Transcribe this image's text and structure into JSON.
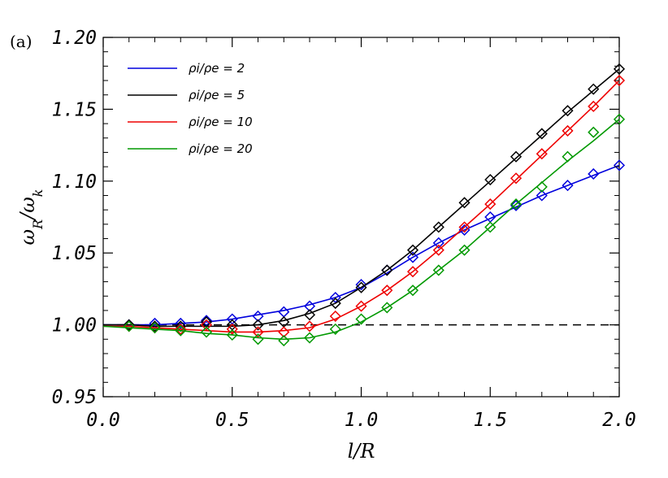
{
  "panel_label": "(a)",
  "chart_data": {
    "type": "line",
    "xlabel": "l/R",
    "ylabel": "ω_R/ω_k",
    "xlim": [
      0.0,
      2.0
    ],
    "ylim": [
      0.95,
      1.2
    ],
    "xticks": [
      "0.0",
      "0.5",
      "1.0",
      "1.5",
      "2.0"
    ],
    "yticks": [
      "0.95",
      "1.00",
      "1.05",
      "1.10",
      "1.15",
      "1.20"
    ],
    "legend_position": "top-left",
    "reference_line": {
      "y": 1.0,
      "x_from": 0.0,
      "x_to": 2.0,
      "style": "dashed",
      "color": "#000000"
    },
    "series": [
      {
        "name": "ρi/ρe = 2",
        "color": "#0000dd",
        "x": [
          0.0,
          0.1,
          0.2,
          0.3,
          0.4,
          0.5,
          0.6,
          0.7,
          0.8,
          0.9,
          1.0,
          1.1,
          1.2,
          1.3,
          1.4,
          1.5,
          1.6,
          1.7,
          1.8,
          1.9,
          2.0
        ],
        "line": [
          1.0,
          1.0,
          1.0,
          1.001,
          1.002,
          1.004,
          1.007,
          1.01,
          1.014,
          1.019,
          1.026,
          1.036,
          1.047,
          1.057,
          1.066,
          1.074,
          1.082,
          1.09,
          1.097,
          1.104,
          1.111
        ],
        "markers_x": [
          0.1,
          0.2,
          0.3,
          0.4,
          0.5,
          0.6,
          0.7,
          0.8,
          0.9,
          1.0,
          1.1,
          1.2,
          1.3,
          1.4,
          1.5,
          1.6,
          1.7,
          1.8,
          1.9,
          2.0
        ],
        "markers": [
          1.0,
          1.001,
          1.001,
          1.003,
          1.004,
          1.006,
          1.009,
          1.013,
          1.019,
          1.028,
          1.038,
          1.047,
          1.057,
          1.066,
          1.075,
          1.083,
          1.09,
          1.097,
          1.105,
          1.111
        ]
      },
      {
        "name": "ρi/ρe = 5",
        "color": "#000000",
        "x": [
          0.0,
          0.1,
          0.2,
          0.3,
          0.4,
          0.5,
          0.6,
          0.7,
          0.8,
          0.9,
          1.0,
          1.1,
          1.2,
          1.3,
          1.4,
          1.5,
          1.6,
          1.7,
          1.8,
          1.9,
          2.0
        ],
        "line": [
          1.0,
          1.0,
          0.999,
          0.999,
          0.999,
          0.999,
          1.0,
          1.003,
          1.008,
          1.015,
          1.026,
          1.038,
          1.052,
          1.068,
          1.084,
          1.1,
          1.116,
          1.132,
          1.148,
          1.163,
          1.178
        ],
        "markers_x": [
          0.1,
          0.2,
          0.3,
          0.4,
          0.5,
          0.6,
          0.7,
          0.8,
          0.9,
          1.0,
          1.1,
          1.2,
          1.3,
          1.4,
          1.5,
          1.6,
          1.7,
          1.8,
          1.9,
          2.0
        ],
        "markers": [
          1.0,
          0.999,
          0.999,
          1.002,
          1.0,
          1.0,
          1.002,
          1.007,
          1.015,
          1.026,
          1.038,
          1.052,
          1.068,
          1.085,
          1.101,
          1.117,
          1.133,
          1.149,
          1.164,
          1.178
        ]
      },
      {
        "name": "ρi/ρe = 10",
        "color": "#ee0000",
        "x": [
          0.0,
          0.1,
          0.2,
          0.3,
          0.4,
          0.5,
          0.6,
          0.7,
          0.8,
          0.9,
          1.0,
          1.1,
          1.2,
          1.3,
          1.4,
          1.5,
          1.6,
          1.7,
          1.8,
          1.9,
          2.0
        ],
        "line": [
          0.999,
          0.999,
          0.998,
          0.997,
          0.996,
          0.995,
          0.995,
          0.996,
          0.998,
          1.004,
          1.013,
          1.024,
          1.037,
          1.052,
          1.068,
          1.084,
          1.101,
          1.118,
          1.135,
          1.152,
          1.17
        ],
        "markers_x": [
          0.1,
          0.2,
          0.3,
          0.4,
          0.5,
          0.6,
          0.7,
          0.8,
          0.9,
          1.0,
          1.1,
          1.2,
          1.3,
          1.4,
          1.5,
          1.6,
          1.7,
          1.8,
          1.9,
          2.0
        ],
        "markers": [
          0.999,
          0.998,
          0.997,
          1.0,
          0.997,
          0.995,
          0.995,
          0.999,
          1.006,
          1.013,
          1.024,
          1.037,
          1.052,
          1.068,
          1.084,
          1.102,
          1.119,
          1.135,
          1.152,
          1.17
        ]
      },
      {
        "name": "ρi/ρe = 20",
        "color": "#009900",
        "x": [
          0.0,
          0.1,
          0.2,
          0.3,
          0.4,
          0.5,
          0.6,
          0.7,
          0.8,
          0.9,
          1.0,
          1.1,
          1.2,
          1.3,
          1.4,
          1.5,
          1.6,
          1.7,
          1.8,
          1.9,
          2.0
        ],
        "line": [
          0.999,
          0.998,
          0.997,
          0.996,
          0.994,
          0.993,
          0.991,
          0.99,
          0.991,
          0.995,
          1.002,
          1.012,
          1.024,
          1.038,
          1.052,
          1.068,
          1.084,
          1.099,
          1.114,
          1.128,
          1.143
        ],
        "markers_x": [
          0.1,
          0.2,
          0.3,
          0.4,
          0.5,
          0.6,
          0.7,
          0.8,
          0.9,
          1.0,
          1.1,
          1.2,
          1.3,
          1.4,
          1.5,
          1.6,
          1.7,
          1.8,
          1.9,
          2.0
        ],
        "markers": [
          0.999,
          0.998,
          0.996,
          0.995,
          0.993,
          0.99,
          0.989,
          0.991,
          0.997,
          1.004,
          1.012,
          1.024,
          1.038,
          1.052,
          1.068,
          1.084,
          1.096,
          1.117,
          1.134,
          1.143
        ]
      }
    ]
  }
}
